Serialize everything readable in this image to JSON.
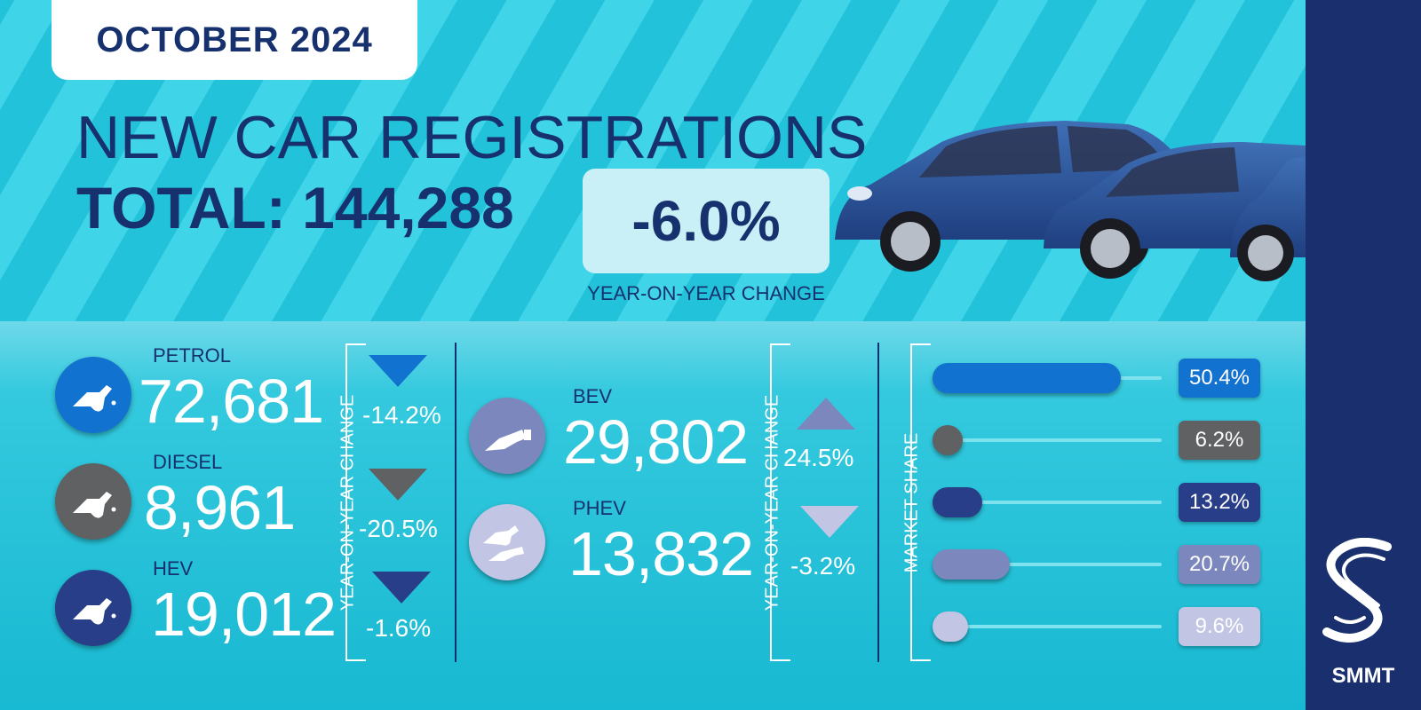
{
  "header": {
    "month": "OCTOBER 2024",
    "title": "NEW CAR REGISTRATIONS",
    "total_label": "TOTAL: 144,288",
    "yoy_value": "-6.0%",
    "yoy_label": "YEAR-ON-YEAR CHANGE"
  },
  "fuels": [
    {
      "name": "PETROL",
      "value": "72,681",
      "change": "-14.2%",
      "share": "50.4%",
      "color": "#1272cf",
      "direction": "down"
    },
    {
      "name": "DIESEL",
      "value": "8,961",
      "change": "-20.5%",
      "share": "6.2%",
      "color": "#5f6163",
      "direction": "down"
    },
    {
      "name": "HEV",
      "value": "19,012",
      "change": "-1.6%",
      "share": "13.2%",
      "color": "#283e88",
      "direction": "down"
    },
    {
      "name": "BEV",
      "value": "29,802",
      "change": "24.5%",
      "share": "20.7%",
      "color": "#7c88bd",
      "direction": "up"
    },
    {
      "name": "PHEV",
      "value": "13,832",
      "change": "-3.2%",
      "share": "9.6%",
      "color": "#c2c5e3",
      "direction": "down"
    }
  ],
  "labels": {
    "yoy_vertical": "YEAR-ON-YEAR CHANGE",
    "market_share": "MARKET SHARE"
  },
  "logo": {
    "text": "SMMT"
  },
  "chart_data": {
    "type": "bar",
    "categories": [
      "PETROL",
      "DIESEL",
      "HEV",
      "BEV",
      "PHEV"
    ],
    "values": [
      50.4,
      6.2,
      13.2,
      20.7,
      9.6
    ],
    "xlabel": "",
    "ylabel": "MARKET SHARE",
    "ylim": [
      0,
      100
    ],
    "colors": [
      "#1272cf",
      "#5f6163",
      "#283e88",
      "#7c88bd",
      "#c2c5e3"
    ],
    "registrations": [
      72681,
      8961,
      19012,
      29802,
      13832
    ],
    "yoy_change": [
      -14.2,
      -20.5,
      -1.6,
      24.5,
      -3.2
    ]
  }
}
